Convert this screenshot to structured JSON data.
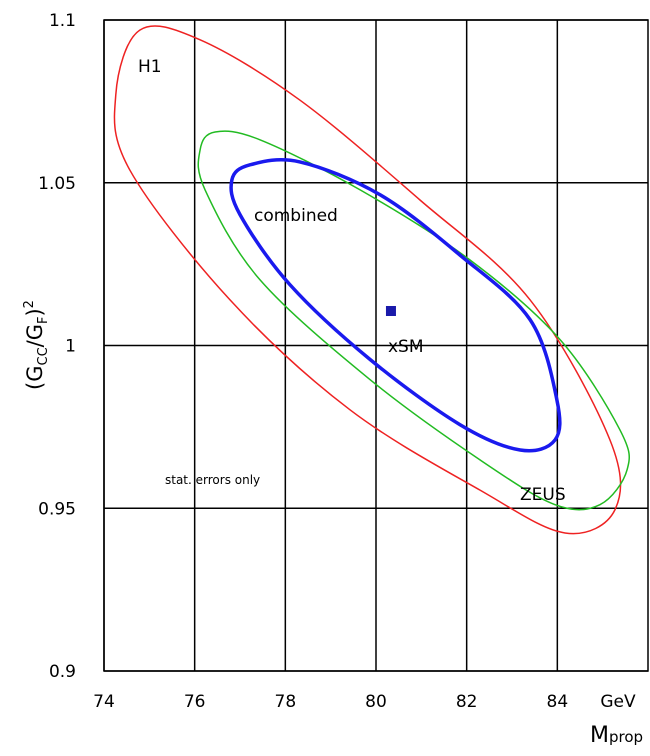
{
  "chart_data": {
    "type": "contour",
    "xlabel": {
      "main": "M",
      "sub": "prop"
    },
    "xunit": "GeV",
    "ylabel": [
      "(G",
      "CC",
      "/G",
      "F",
      ")",
      "2"
    ],
    "xlim": [
      74,
      86
    ],
    "ylim": [
      0.9,
      1.1
    ],
    "xticks": [
      74,
      76,
      78,
      80,
      82,
      84
    ],
    "yticks": [
      0.9,
      0.95,
      1,
      1.05,
      1.1
    ],
    "grid": true,
    "series": [
      {
        "color": "#ee2222",
        "width": 1.5,
        "x": [
          74.79,
          76.12,
          78.32,
          80.97,
          83.4,
          85.16,
          85.27,
          84.17,
          82.29,
          79.43,
          76.78,
          74.57,
          74.26
        ],
        "values": [
          1.0969,
          1.0939,
          1.0754,
          1.0447,
          1.014,
          0.971,
          0.9495,
          0.9424,
          0.9556,
          0.9802,
          1.014,
          1.0539,
          1.077
        ]
      },
      {
        "color": "#22bb22",
        "width": 1.5,
        "x": [
          76.45,
          77.44,
          79.65,
          82.07,
          84.06,
          85.38,
          85.54,
          84.94,
          83.95,
          82.29,
          79.87,
          77.44,
          76.23,
          76.12
        ],
        "values": [
          1.0656,
          1.0632,
          1.0478,
          1.0263,
          1.0018,
          0.9741,
          0.9619,
          0.9511,
          0.9511,
          0.9649,
          0.9895,
          1.0202,
          1.0478,
          1.0601
        ]
      },
      {
        "color": "#1a1aee",
        "width": 3.5,
        "x": [
          77.22,
          78.32,
          80.09,
          81.85,
          83.4,
          83.99,
          83.95,
          83.18,
          81.85,
          79.87,
          78.1,
          77.0,
          76.82
        ],
        "values": [
          1.0555,
          1.0564,
          1.0463,
          1.0278,
          1.0079,
          0.9833,
          0.971,
          0.9679,
          0.9757,
          0.9957,
          1.0187,
          1.0402,
          1.0508
        ]
      }
    ],
    "point": {
      "x": 80.33,
      "y": 1.0106,
      "color": "#1a1aaa"
    },
    "annotations": [
      "H1",
      "combined",
      "xSM",
      "stat. errors only",
      "ZEUS"
    ]
  }
}
